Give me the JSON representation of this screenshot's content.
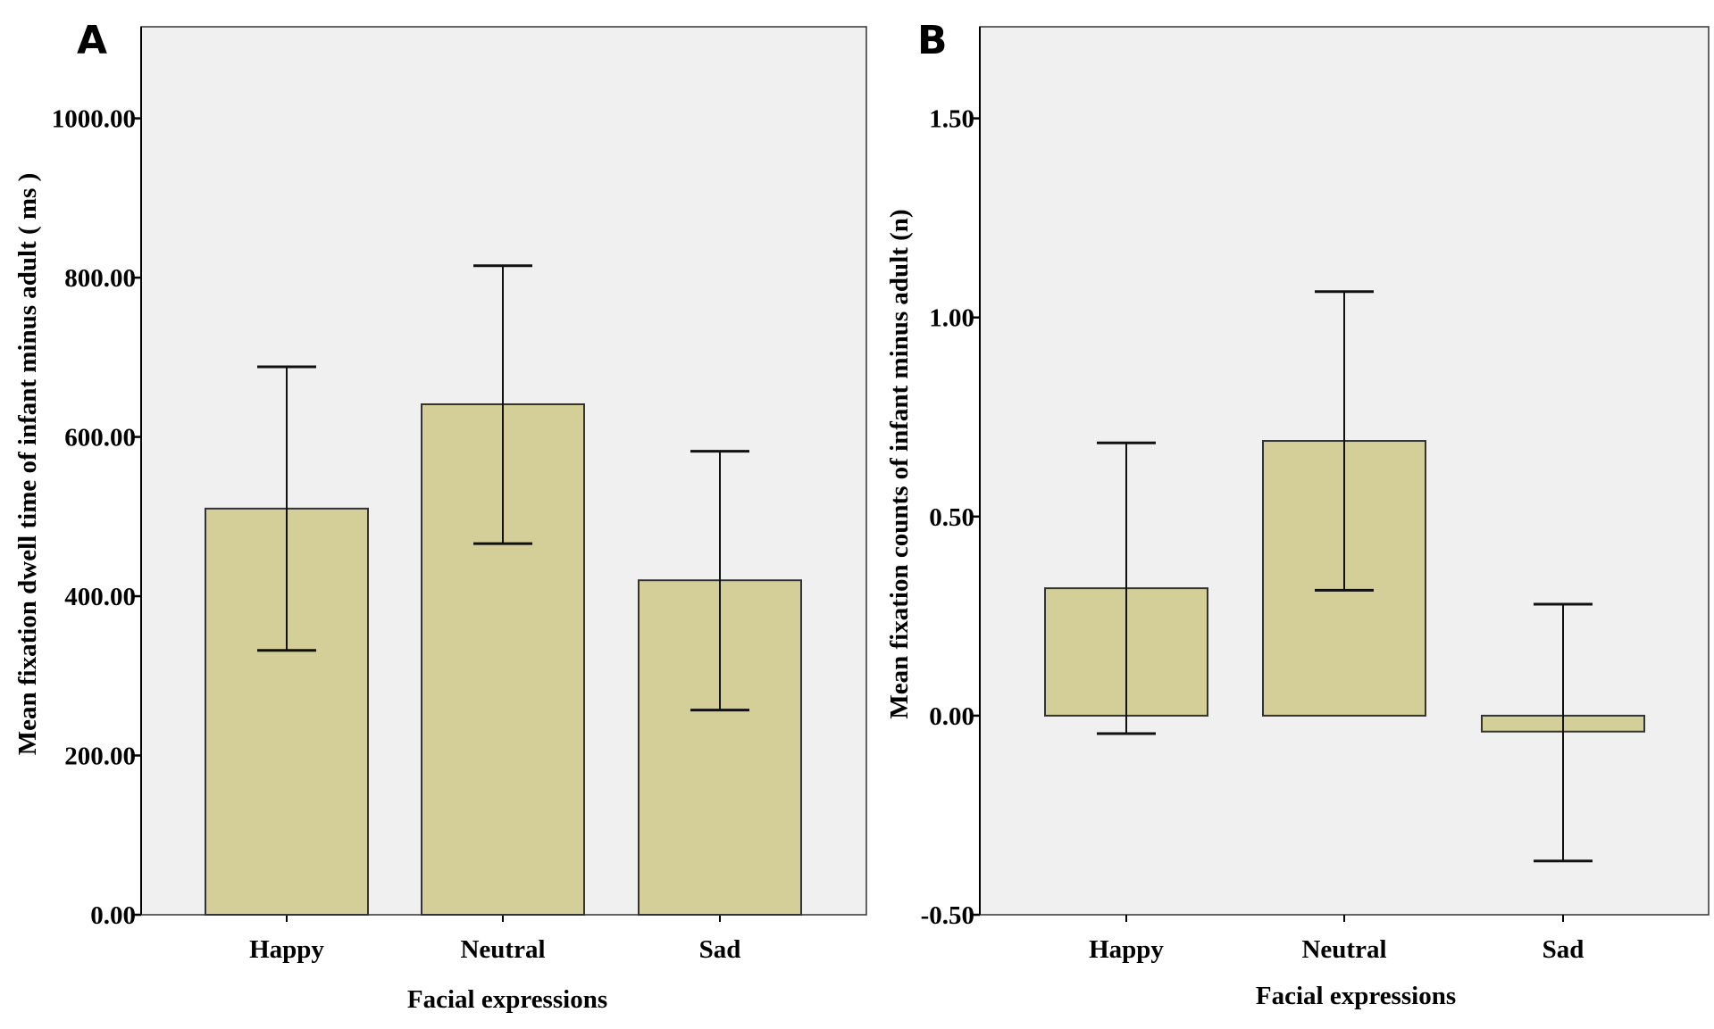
{
  "chart_data": [
    {
      "panel_label": "A",
      "type": "bar",
      "title": "",
      "xlabel": "Facial expressions",
      "ylabel": "Mean fixation dwell time of infant minus adult ( ms )",
      "categories": [
        "Happy",
        "Neutral",
        "Sad"
      ],
      "values": [
        510,
        641,
        420
      ],
      "error_bars": [
        {
          "low": 332,
          "high": 688
        },
        {
          "low": 466,
          "high": 815
        },
        {
          "low": 257,
          "high": 582
        }
      ],
      "ylim": [
        0,
        1115
      ],
      "yticks": [
        0,
        200,
        400,
        600,
        800,
        1000
      ],
      "ytick_labels": [
        "0.00",
        "200.00",
        "400.00",
        "600.00",
        "800.00",
        "1000.00"
      ],
      "bar_color": "#d4cf99",
      "background_color": "#f0f0f0"
    },
    {
      "panel_label": "B",
      "type": "bar",
      "title": "",
      "xlabel": "Facial expressions",
      "ylabel": "Mean fixation counts of infant minus adult (n)",
      "categories": [
        "Happy",
        "Neutral",
        "Sad"
      ],
      "values": [
        0.32,
        0.69,
        -0.04
      ],
      "error_bars": [
        {
          "low": -0.045,
          "high": 0.685
        },
        {
          "low": 0.315,
          "high": 1.065
        },
        {
          "low": -0.365,
          "high": 0.28
        }
      ],
      "ylim": [
        -0.5,
        1.73
      ],
      "yticks": [
        -0.5,
        0.0,
        0.5,
        1.0,
        1.5
      ],
      "ytick_labels": [
        "-0.50",
        "0.00",
        "0.50",
        "1.00",
        "1.50"
      ],
      "bar_color": "#d4cf99",
      "background_color": "#f0f0f0"
    }
  ]
}
